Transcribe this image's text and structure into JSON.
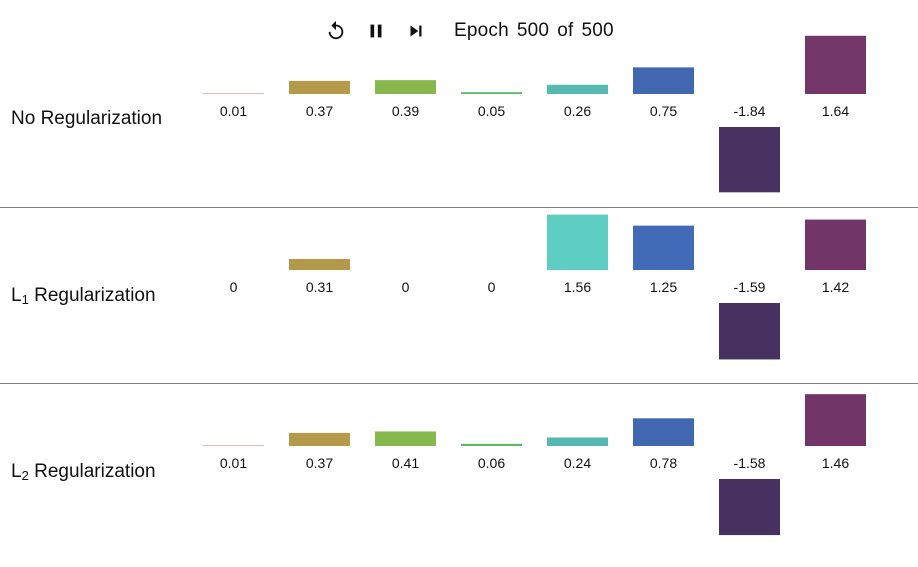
{
  "controls": {
    "restart_icon": "restart-icon",
    "pause_icon": "pause-icon",
    "step_icon": "step-forward-icon"
  },
  "epoch": {
    "label": "Epoch",
    "current": "500",
    "of_word": "of",
    "total": "500"
  },
  "rows": [
    {
      "label_main": "No Regularization",
      "label_prefix": "",
      "label_sub": "",
      "label_rest": ""
    },
    {
      "label_main": "",
      "label_prefix": "L",
      "label_sub": "1",
      "label_rest": " Regularization"
    },
    {
      "label_main": "",
      "label_prefix": "L",
      "label_sub": "2",
      "label_rest": " Regularization"
    }
  ],
  "chart_data": {
    "type": "bar",
    "colors": [
      "#e34a4a",
      "#d9b95a",
      "#a2dc5c",
      "#72e47f",
      "#66e0d4",
      "#4a78cc",
      "#4c3568",
      "#7d3a72"
    ],
    "series": [
      {
        "values": [
          0.01,
          0.37,
          0.39,
          0.05,
          0.26,
          0.75,
          -1.84,
          1.64
        ],
        "labels": [
          "0.01",
          "0.37",
          "0.39",
          "0.05",
          "0.26",
          "0.75",
          "-1.84",
          "1.64"
        ]
      },
      {
        "values": [
          0,
          0.31,
          0,
          0,
          1.56,
          1.25,
          -1.59,
          1.42
        ],
        "labels": [
          "0",
          "0.31",
          "0",
          "0",
          "1.56",
          "1.25",
          "-1.59",
          "1.42"
        ]
      },
      {
        "values": [
          0.01,
          0.37,
          0.41,
          0.06,
          0.24,
          0.78,
          -1.58,
          1.46
        ],
        "labels": [
          "0.01",
          "0.37",
          "0.41",
          "0.06",
          "0.24",
          "0.78",
          "-1.58",
          "1.46"
        ]
      }
    ]
  }
}
